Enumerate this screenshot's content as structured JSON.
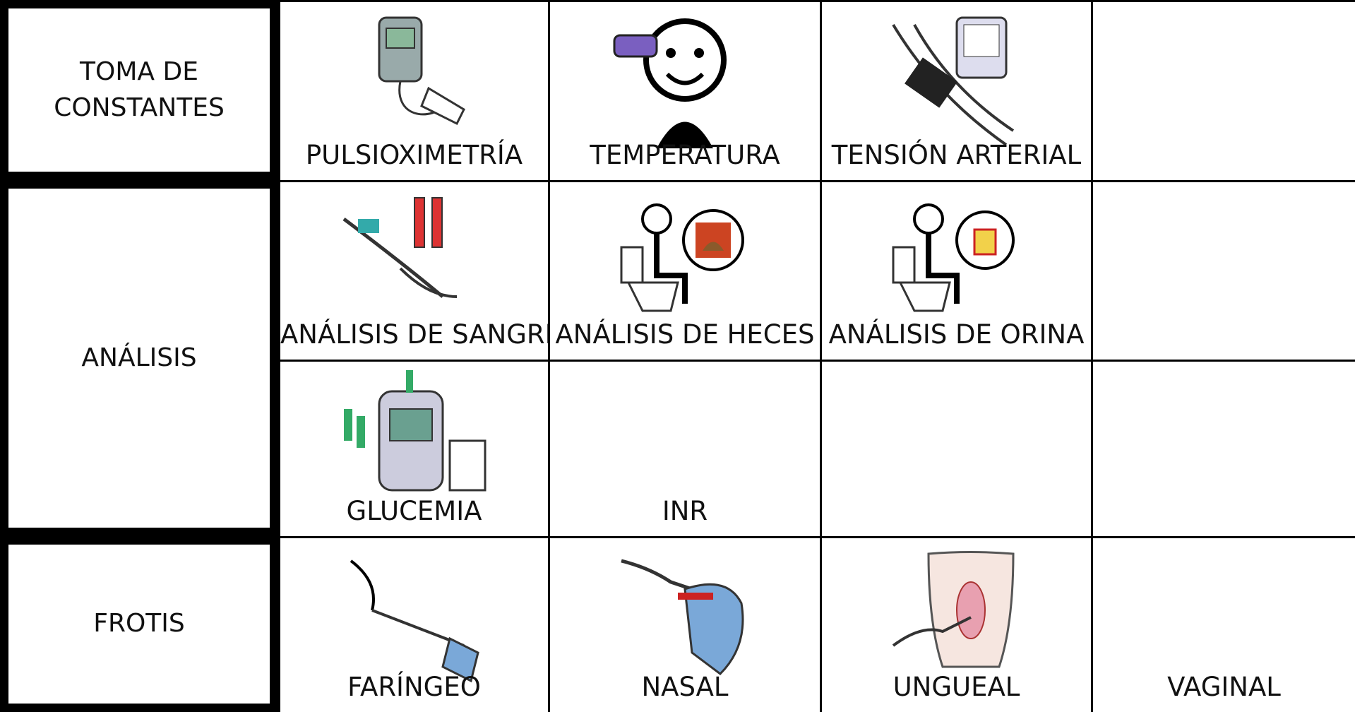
{
  "sections": [
    {
      "label": "TOMA DE CONSTANTES",
      "rows": [
        [
          "PULSIOXIMETRÍA",
          "TEMPERATURA",
          "TENSIÓN ARTERIAL"
        ]
      ]
    },
    {
      "label": "ANÁLISIS",
      "rows": [
        [
          "ANÁLISIS DE SANGRE",
          "ANÁLISIS DE HECES",
          "ANÁLISIS DE ORINA"
        ],
        [
          "GLUCEMIA",
          "INR"
        ]
      ]
    },
    {
      "label": "FROTIS",
      "rows": [
        [
          "FARÍNGEO",
          "NASAL",
          "UNGUEAL",
          "VAGINAL"
        ]
      ]
    }
  ]
}
